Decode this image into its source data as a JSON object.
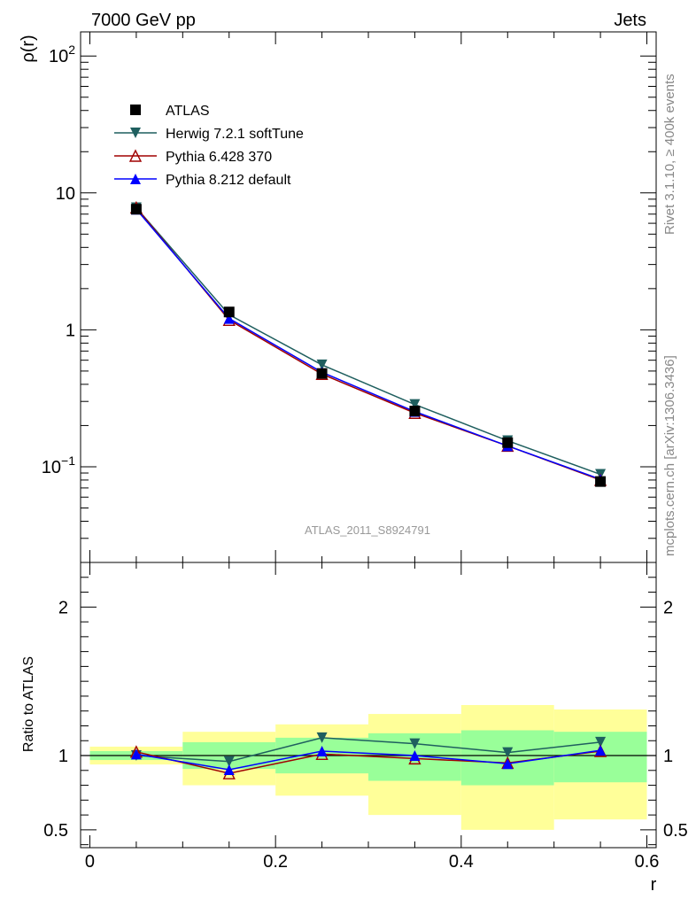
{
  "header": {
    "left": "7000 GeV pp",
    "right": "Jets"
  },
  "side_notes": {
    "rivet": "Rivet 3.1.10, ≥ 400k events",
    "mcplots": "mcplots.cern.ch [arXiv:1306.3436]"
  },
  "watermark": "ATLAS_2011_S8924791",
  "chart_data": [
    {
      "type": "line",
      "panel": "main",
      "ylabel": "ρ(r)",
      "yscale": "log",
      "ylim": [
        0.02,
        150
      ],
      "xlim": [
        -0.01,
        0.61
      ],
      "yticks": [
        {
          "value": 0.1,
          "base": "10",
          "exp": "−1"
        },
        {
          "value": 1,
          "label": "1"
        },
        {
          "value": 10,
          "label": "10"
        },
        {
          "value": 100,
          "base": "10",
          "exp": "2"
        }
      ],
      "x": [
        0.05,
        0.15,
        0.25,
        0.35,
        0.45,
        0.55
      ],
      "series": [
        {
          "name": "ATLAS",
          "color": "#000000",
          "marker": "square",
          "values": [
            7.6,
            1.35,
            0.48,
            0.255,
            0.15,
            0.078
          ]
        },
        {
          "name": "Herwig 7.2.1 softTune",
          "color": "#1f5f5f",
          "marker": "triangle-down",
          "values": [
            7.8,
            1.29,
            0.555,
            0.285,
            0.155,
            0.088
          ]
        },
        {
          "name": "Pythia 6.428 370",
          "color": "#a00000",
          "marker": "triangle-up-open",
          "values": [
            7.8,
            1.18,
            0.475,
            0.247,
            0.142,
            0.08
          ]
        },
        {
          "name": "Pythia 8.212 default",
          "color": "#0000ff",
          "marker": "triangle-up",
          "values": [
            7.6,
            1.21,
            0.49,
            0.253,
            0.142,
            0.081
          ]
        }
      ]
    },
    {
      "type": "line",
      "panel": "ratio",
      "ylabel": "Ratio to ATLAS",
      "xlabel": "r",
      "ylim": [
        0.38,
        2.3
      ],
      "xlim": [
        -0.01,
        0.61
      ],
      "xticks": [
        {
          "value": 0,
          "label": "0"
        },
        {
          "value": 0.2,
          "label": "0.2"
        },
        {
          "value": 0.4,
          "label": "0.4"
        },
        {
          "value": 0.6,
          "label": "0.6"
        }
      ],
      "yticks": [
        {
          "value": 0.5,
          "label": "0.5"
        },
        {
          "value": 1,
          "label": "1"
        },
        {
          "value": 2,
          "label": "2"
        }
      ],
      "bands": [
        {
          "x0": 0.0,
          "x1": 0.1,
          "yellow": [
            0.94,
            1.06
          ],
          "green": [
            0.97,
            1.03
          ]
        },
        {
          "x0": 0.1,
          "x1": 0.2,
          "yellow": [
            0.8,
            1.16
          ],
          "green": [
            0.91,
            1.09
          ]
        },
        {
          "x0": 0.2,
          "x1": 0.3,
          "yellow": [
            0.73,
            1.21
          ],
          "green": [
            0.88,
            1.12
          ]
        },
        {
          "x0": 0.3,
          "x1": 0.4,
          "yellow": [
            0.6,
            1.28
          ],
          "green": [
            0.83,
            1.15
          ]
        },
        {
          "x0": 0.4,
          "x1": 0.5,
          "yellow": [
            0.5,
            1.34
          ],
          "green": [
            0.8,
            1.17
          ]
        },
        {
          "x0": 0.5,
          "x1": 0.6,
          "yellow": [
            0.57,
            1.31
          ],
          "green": [
            0.82,
            1.16
          ]
        }
      ],
      "x": [
        0.05,
        0.15,
        0.25,
        0.35,
        0.45,
        0.55
      ],
      "series": [
        {
          "name": "Herwig 7.2.1 softTune",
          "color": "#1f5f5f",
          "marker": "triangle-down",
          "values": [
            1.0,
            0.96,
            1.12,
            1.08,
            1.02,
            1.09
          ]
        },
        {
          "name": "Pythia 6.428 370",
          "color": "#a00000",
          "marker": "triangle-up-open",
          "values": [
            1.025,
            0.88,
            1.01,
            0.98,
            0.95,
            1.03
          ]
        },
        {
          "name": "Pythia 8.212 default",
          "color": "#0000ff",
          "marker": "triangle-up",
          "values": [
            1.01,
            0.905,
            1.03,
            1.0,
            0.945,
            1.035
          ]
        }
      ]
    }
  ]
}
